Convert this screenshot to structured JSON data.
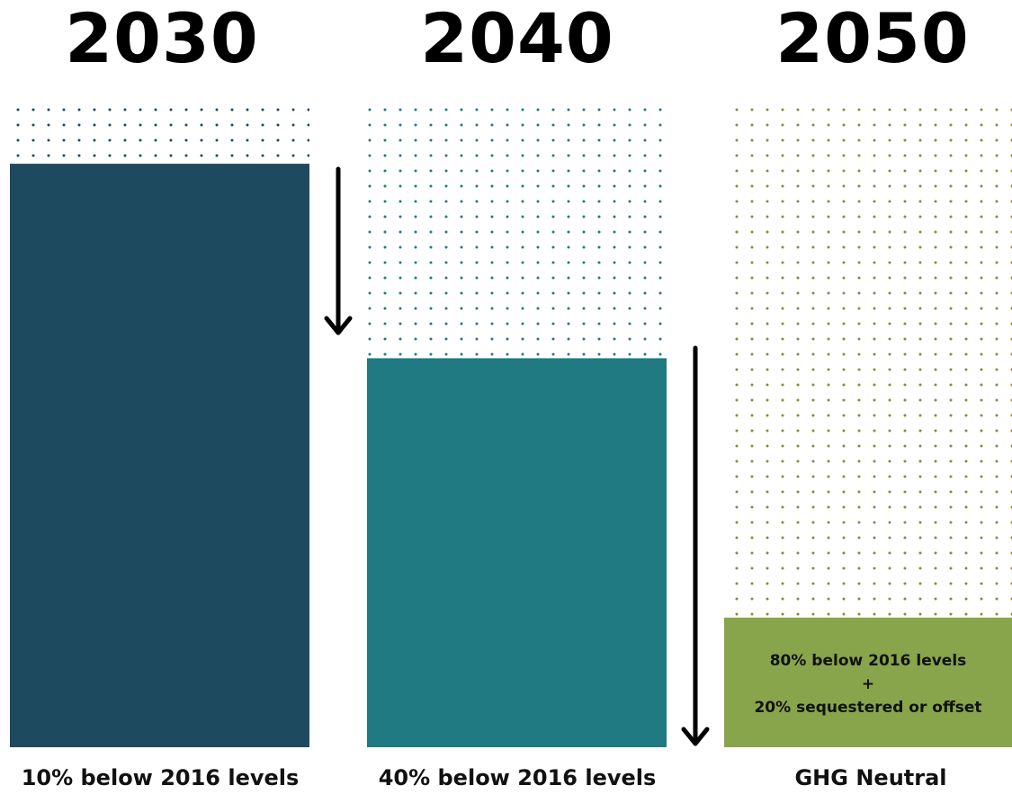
{
  "chart_data": {
    "type": "bar",
    "categories": [
      "2030",
      "2040",
      "2050"
    ],
    "values": [
      90,
      60,
      20
    ],
    "values_note_unit": "% of 2016 levels",
    "labels": [
      "10% below 2016 levels",
      "40% below 2016 levels",
      "GHG Neutral"
    ],
    "annotation_2050": {
      "line1": "80% below 2016 levels",
      "line2": "+",
      "line3": "20% sequestered or offset"
    },
    "ylim": [
      0,
      100
    ],
    "colors": [
      "#1e4a60",
      "#1f7a82",
      "#88a54b"
    ],
    "dot_colors": [
      "#1e4a60",
      "#1f7a82",
      "#8a8a3a"
    ]
  }
}
